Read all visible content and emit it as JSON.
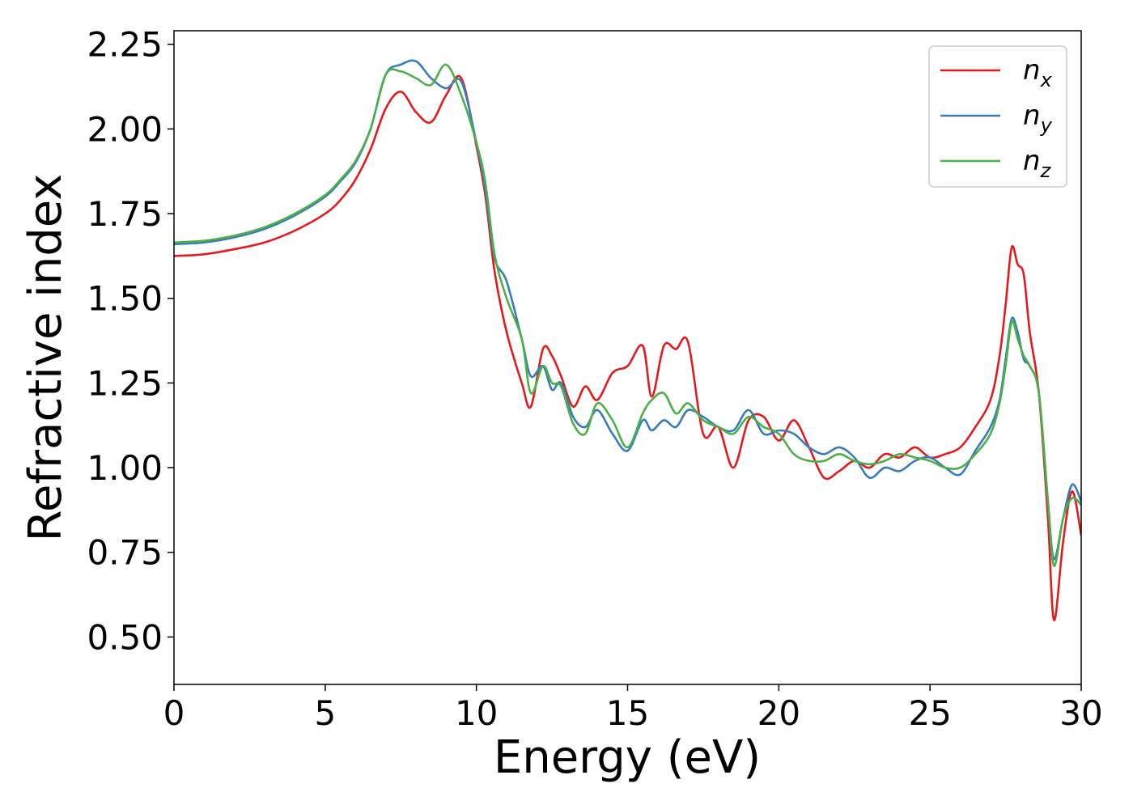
{
  "chart_data": {
    "type": "line",
    "xlabel": "Energy (eV)",
    "ylabel": "Refractive index",
    "xlim": [
      0,
      30
    ],
    "ylim": [
      0.36,
      2.29
    ],
    "xticks": [
      0,
      5,
      10,
      15,
      20,
      25,
      30
    ],
    "xtick_labels": [
      "0",
      "5",
      "10",
      "15",
      "20",
      "25",
      "30"
    ],
    "yticks": [
      0.5,
      0.75,
      1.0,
      1.25,
      1.5,
      1.75,
      2.0,
      2.25
    ],
    "ytick_labels": [
      "0.50",
      "0.75",
      "1.00",
      "1.25",
      "1.50",
      "1.75",
      "2.00",
      "2.25"
    ],
    "grid": false,
    "legend_position": "top-right",
    "series": [
      {
        "name": "n_x",
        "label_base": "n",
        "label_sub": "x",
        "color": "#e41a1c",
        "x": [
          0,
          1,
          2,
          3,
          4,
          5,
          5.5,
          6,
          6.5,
          7,
          7.5,
          8,
          8.5,
          9,
          9.5,
          10,
          10.3,
          10.6,
          11,
          11.5,
          11.8,
          12.2,
          12.5,
          12.8,
          13.2,
          13.6,
          14,
          14.5,
          15,
          15.5,
          15.8,
          16.2,
          16.6,
          17,
          17.5,
          18,
          18.5,
          19,
          19.5,
          20,
          20.5,
          21,
          21.5,
          22,
          22.5,
          23,
          23.5,
          24,
          24.5,
          25,
          25.5,
          26,
          26.5,
          27,
          27.3,
          27.5,
          27.7,
          27.9,
          28.1,
          28.3,
          28.6,
          28.9,
          29.1,
          29.4,
          29.7,
          30
        ],
        "y": [
          1.625,
          1.63,
          1.645,
          1.665,
          1.7,
          1.75,
          1.79,
          1.85,
          1.94,
          2.06,
          2.11,
          2.05,
          2.02,
          2.1,
          2.15,
          1.95,
          1.8,
          1.58,
          1.4,
          1.25,
          1.18,
          1.35,
          1.33,
          1.27,
          1.18,
          1.24,
          1.2,
          1.28,
          1.3,
          1.36,
          1.21,
          1.36,
          1.35,
          1.37,
          1.1,
          1.12,
          1.0,
          1.14,
          1.15,
          1.08,
          1.14,
          1.06,
          0.97,
          0.99,
          1.02,
          1.0,
          1.04,
          1.03,
          1.06,
          1.03,
          1.04,
          1.06,
          1.12,
          1.2,
          1.33,
          1.48,
          1.65,
          1.6,
          1.57,
          1.4,
          1.22,
          0.85,
          0.55,
          0.78,
          0.93,
          0.8
        ]
      },
      {
        "name": "n_y",
        "label_base": "n",
        "label_sub": "y",
        "color": "#377eb8",
        "x": [
          0,
          1,
          2,
          3,
          4,
          5,
          5.5,
          6,
          6.5,
          7,
          7.5,
          8,
          8.5,
          9,
          9.5,
          10,
          10.3,
          10.6,
          11,
          11.5,
          11.8,
          12.2,
          12.5,
          12.8,
          13.2,
          13.6,
          14,
          14.5,
          15,
          15.5,
          15.8,
          16.2,
          16.6,
          17,
          17.5,
          18,
          18.5,
          19,
          19.5,
          20,
          20.5,
          21,
          21.5,
          22,
          22.5,
          23,
          23.5,
          24,
          24.5,
          25,
          25.5,
          26,
          26.5,
          27,
          27.3,
          27.5,
          27.7,
          27.9,
          28.1,
          28.3,
          28.6,
          28.9,
          29.1,
          29.4,
          29.7,
          30
        ],
        "y": [
          1.66,
          1.665,
          1.68,
          1.705,
          1.745,
          1.8,
          1.845,
          1.9,
          2.0,
          2.16,
          2.19,
          2.2,
          2.15,
          2.12,
          2.14,
          1.96,
          1.82,
          1.62,
          1.55,
          1.38,
          1.27,
          1.3,
          1.23,
          1.25,
          1.15,
          1.12,
          1.17,
          1.1,
          1.05,
          1.14,
          1.11,
          1.14,
          1.12,
          1.17,
          1.15,
          1.12,
          1.11,
          1.17,
          1.1,
          1.11,
          1.1,
          1.06,
          1.04,
          1.06,
          1.03,
          0.97,
          1.0,
          0.99,
          1.02,
          1.03,
          1.0,
          0.98,
          1.05,
          1.12,
          1.2,
          1.32,
          1.44,
          1.4,
          1.32,
          1.3,
          1.22,
          0.9,
          0.73,
          0.85,
          0.95,
          0.9
        ]
      },
      {
        "name": "n_z",
        "label_base": "n",
        "label_sub": "z",
        "color": "#4daf4a",
        "x": [
          0,
          1,
          2,
          3,
          4,
          5,
          5.5,
          6,
          6.5,
          7,
          7.5,
          8,
          8.5,
          9,
          9.5,
          10,
          10.3,
          10.6,
          11,
          11.5,
          11.8,
          12.2,
          12.5,
          12.8,
          13.2,
          13.6,
          14,
          14.5,
          15,
          15.5,
          15.8,
          16.2,
          16.6,
          17,
          17.5,
          18,
          18.5,
          19,
          19.5,
          20,
          20.5,
          21,
          21.5,
          22,
          22.5,
          23,
          23.5,
          24,
          24.5,
          25,
          25.5,
          26,
          26.5,
          27,
          27.3,
          27.5,
          27.7,
          27.9,
          28.1,
          28.3,
          28.6,
          28.9,
          29.1,
          29.4,
          29.7,
          30
        ],
        "y": [
          1.665,
          1.67,
          1.685,
          1.71,
          1.75,
          1.805,
          1.85,
          1.905,
          2.0,
          2.16,
          2.17,
          2.15,
          2.13,
          2.19,
          2.1,
          1.96,
          1.84,
          1.63,
          1.5,
          1.38,
          1.22,
          1.3,
          1.25,
          1.24,
          1.13,
          1.1,
          1.19,
          1.14,
          1.06,
          1.16,
          1.2,
          1.22,
          1.16,
          1.19,
          1.14,
          1.12,
          1.1,
          1.15,
          1.12,
          1.1,
          1.04,
          1.02,
          1.02,
          1.04,
          1.02,
          1.01,
          1.02,
          1.04,
          1.03,
          1.02,
          1.0,
          1.0,
          1.04,
          1.1,
          1.19,
          1.3,
          1.43,
          1.38,
          1.33,
          1.3,
          1.22,
          0.9,
          0.71,
          0.85,
          0.91,
          0.89
        ]
      }
    ]
  }
}
